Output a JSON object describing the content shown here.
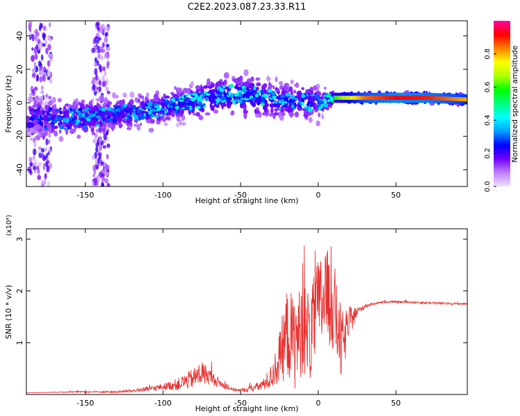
{
  "page": {
    "title": "C2E2.2023.087.23.33.R11"
  },
  "chart_data": [
    {
      "type": "heatmap",
      "xlabel": "Height of straight line (km)",
      "ylabel": "Frequency (Hz)",
      "xlim": [
        -188,
        96
      ],
      "ylim": [
        -50,
        49
      ],
      "xticks": [
        -150,
        -100,
        -50,
        0,
        50
      ],
      "xtick_labels": [
        "-150",
        "-100",
        "-50",
        "0",
        "50"
      ],
      "yticks": [
        -40,
        -20,
        0,
        20,
        40
      ],
      "ytick_labels": [
        "-40",
        "-20",
        "0",
        "20",
        "40"
      ],
      "colorbar": {
        "label": "Normalized spectral amplitude",
        "range": [
          0,
          1
        ],
        "ticks": [
          0.0,
          0.2,
          0.4,
          0.6,
          0.8
        ],
        "tick_labels": [
          "0.0",
          "0.2",
          "0.4",
          "0.6",
          "0.8"
        ],
        "colors": [
          "#f0e0ff",
          "#c080ff",
          "#7000ff",
          "#0000ff",
          "#00a0ff",
          "#00ffff",
          "#00ff80",
          "#00ff00",
          "#b0ff00",
          "#ffff00",
          "#ff8000",
          "#ff0000",
          "#ff00a0"
        ]
      },
      "ridge": {
        "x": [
          -186,
          -170,
          -150,
          -135,
          -120,
          -105,
          -90,
          -75,
          -60,
          -45,
          -30,
          -15,
          0,
          10,
          30,
          50,
          70,
          95
        ],
        "y": [
          -8,
          -10,
          -9,
          -7,
          -6,
          -4,
          -1,
          2,
          5,
          4,
          2,
          1,
          0,
          3,
          3,
          3,
          3,
          2
        ],
        "amplitude": [
          0.3,
          0.35,
          0.4,
          0.38,
          0.4,
          0.42,
          0.45,
          0.48,
          0.5,
          0.48,
          0.45,
          0.42,
          0.4,
          0.6,
          0.85,
          0.92,
          0.9,
          0.8
        ],
        "bandwidth_hz": [
          14,
          14,
          12,
          12,
          11,
          11,
          10,
          11,
          12,
          13,
          12,
          12,
          11,
          4,
          3,
          3,
          3,
          3
        ]
      },
      "scatter_columns": [
        {
          "x_range": [
            -186,
            -172
          ],
          "y_range": [
            -50,
            49
          ]
        },
        {
          "x_range": [
            -145,
            -135
          ],
          "y_range": [
            -50,
            49
          ]
        }
      ]
    },
    {
      "type": "line",
      "xlabel": "Height of straight line (km)",
      "ylabel": "SNR (10 * v/v)",
      "y_multiplier_label": "(x10⁴)",
      "xlim": [
        -188,
        96
      ],
      "ylim": [
        0,
        3.2
      ],
      "xticks": [
        -150,
        -100,
        -50,
        0,
        50
      ],
      "xtick_labels": [
        "-150",
        "-100",
        "-50",
        "0",
        "50"
      ],
      "yticks": [
        1,
        2,
        3
      ],
      "ytick_labels": [
        "1",
        "2",
        "3"
      ],
      "series": [
        {
          "color": "#e83030",
          "x": [
            -188,
            -160,
            -130,
            -120,
            -110,
            -100,
            -90,
            -80,
            -75,
            -70,
            -65,
            -60,
            -55,
            -50,
            -45,
            -40,
            -35,
            -30,
            -25,
            -20,
            -15,
            -10,
            -5,
            0,
            5,
            10,
            15,
            20,
            25,
            30,
            35,
            40,
            50,
            60,
            70,
            80,
            96
          ],
          "y": [
            0.03,
            0.05,
            0.05,
            0.07,
            0.1,
            0.15,
            0.2,
            0.32,
            0.42,
            0.35,
            0.25,
            0.15,
            0.1,
            0.08,
            0.1,
            0.14,
            0.2,
            0.35,
            0.7,
            1.2,
            1.0,
            1.3,
            1.1,
            1.7,
            1.9,
            1.7,
            0.9,
            1.4,
            1.6,
            1.7,
            1.75,
            1.78,
            1.79,
            1.78,
            1.77,
            1.76,
            1.75
          ],
          "noise": [
            0.0,
            0.01,
            0.02,
            0.03,
            0.05,
            0.06,
            0.12,
            0.2,
            0.25,
            0.15,
            0.1,
            0.05,
            0.03,
            0.03,
            0.05,
            0.08,
            0.12,
            0.25,
            0.5,
            0.9,
            0.9,
            0.9,
            0.9,
            0.95,
            0.95,
            0.9,
            0.7,
            0.3,
            0.1,
            0.03,
            0.02,
            0.02,
            0.02,
            0.02,
            0.02,
            0.02,
            0.02
          ]
        }
      ]
    }
  ]
}
